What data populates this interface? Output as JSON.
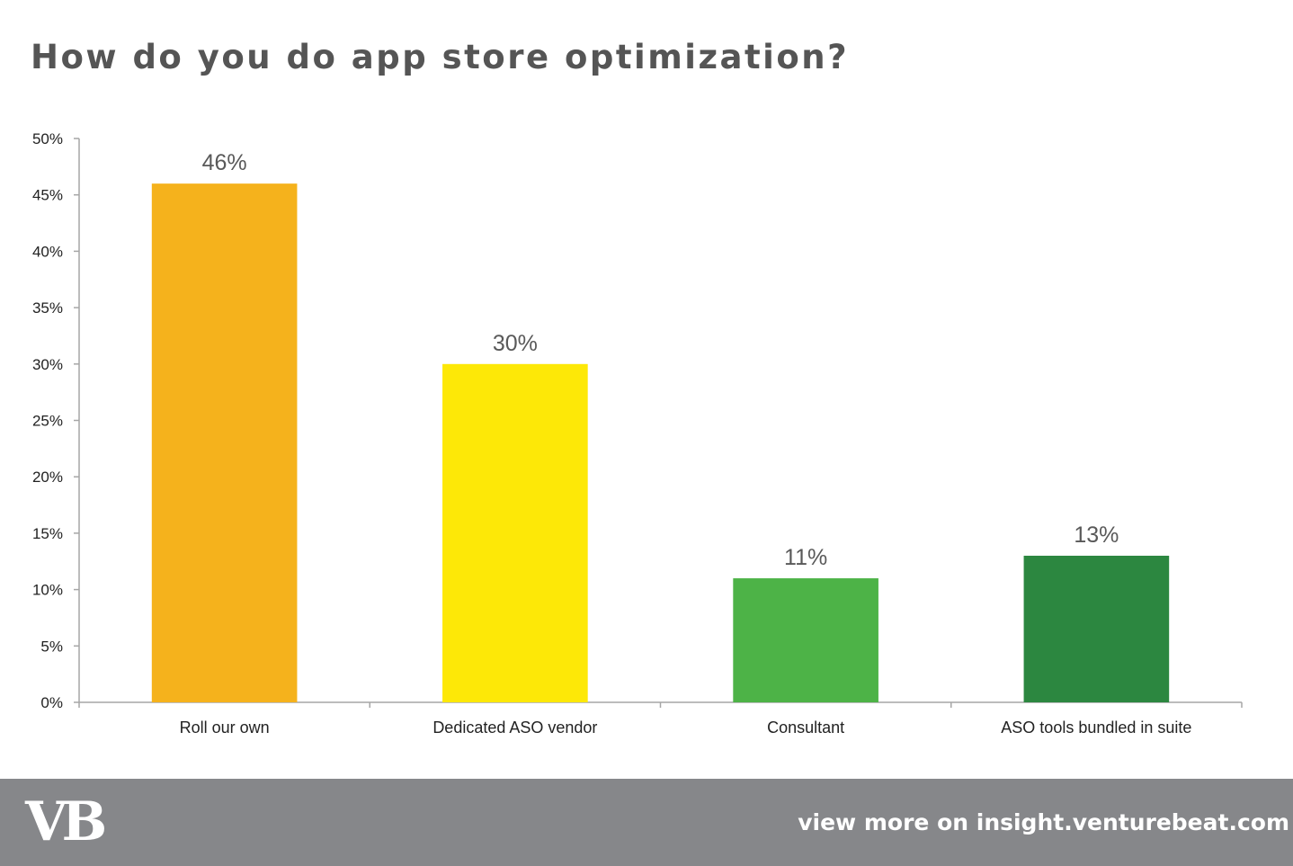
{
  "chart_data": {
    "type": "bar",
    "title": "How do you do app store optimization?",
    "xlabel": "",
    "ylabel": "",
    "categories": [
      "Roll our own",
      "Dedicated ASO vendor",
      "Consultant",
      "ASO tools bundled in suite"
    ],
    "values": [
      46,
      30,
      11,
      13
    ],
    "value_labels": [
      "46%",
      "30%",
      "11%",
      "13%"
    ],
    "colors": [
      "#f5b21c",
      "#fde807",
      "#4db347",
      "#2c8740"
    ],
    "ylim": [
      0,
      50
    ],
    "yticks": [
      0,
      5,
      10,
      15,
      20,
      25,
      30,
      35,
      40,
      45,
      50
    ],
    "ytick_labels": [
      "0%",
      "5%",
      "10%",
      "15%",
      "20%",
      "25%",
      "30%",
      "35%",
      "40%",
      "45%",
      "50%"
    ],
    "grid": false,
    "legend": "none"
  },
  "footer": {
    "logo_text": "VB",
    "link_text": "view more on insight.venturebeat.com",
    "background": "#86878a"
  }
}
